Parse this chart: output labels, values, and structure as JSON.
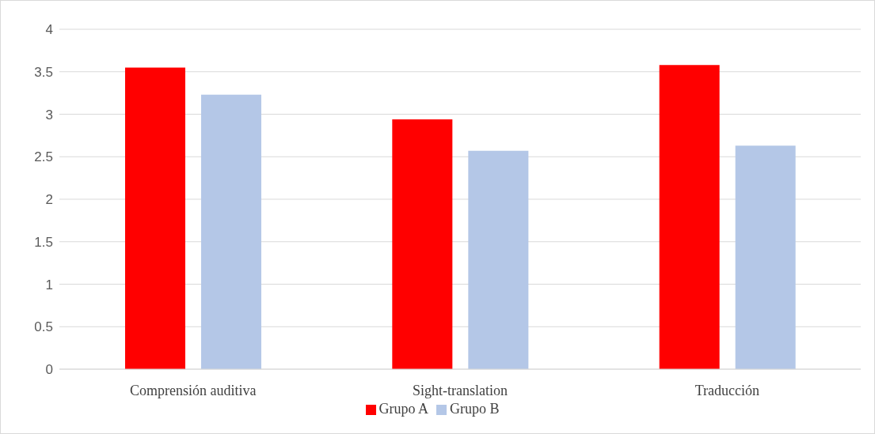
{
  "chart_data": {
    "type": "bar",
    "categories": [
      "Comprensión auditiva",
      "Sight-translation",
      "Traducción"
    ],
    "series": [
      {
        "name": "Grupo A",
        "color": "#ff0000",
        "values": [
          3.55,
          2.94,
          3.58
        ]
      },
      {
        "name": "Grupo B",
        "color": "#b4c7e7",
        "values": [
          3.23,
          2.57,
          2.63
        ]
      }
    ],
    "ylim": [
      0,
      4
    ],
    "yticks": [
      0,
      0.5,
      1,
      1.5,
      2,
      2.5,
      3,
      3.5,
      4
    ],
    "grid": "y",
    "legend": "bottom"
  }
}
